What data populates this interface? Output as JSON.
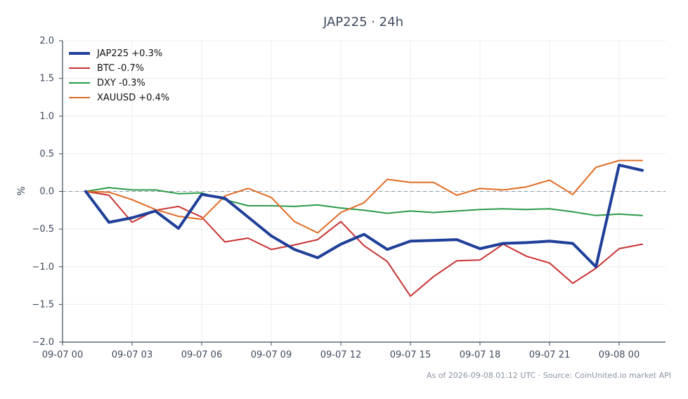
{
  "chart_data": {
    "type": "line",
    "title": "JAP225 · 24h",
    "xlabel": "",
    "ylabel": "%",
    "ylim": [
      -2.0,
      2.0
    ],
    "xlim": [
      "2026-09-07 00:00",
      "2026-09-08 02:00"
    ],
    "yticks": [
      -2.0,
      -1.5,
      -1.0,
      -0.5,
      0.0,
      0.5,
      1.0,
      1.5,
      2.0
    ],
    "ytick_labels": [
      "−2.0",
      "−1.5",
      "−1.0",
      "−0.5",
      "0.0",
      "0.5",
      "1.0",
      "1.5",
      "2.0"
    ],
    "xticks": [
      "2026-09-07 00:00",
      "2026-09-07 03:00",
      "2026-09-07 06:00",
      "2026-09-07 09:00",
      "2026-09-07 12:00",
      "2026-09-07 15:00",
      "2026-09-07 18:00",
      "2026-09-07 21:00",
      "2026-09-08 00:00"
    ],
    "xtick_labels": [
      "09-07 00",
      "09-07 03",
      "09-07 06",
      "09-07 09",
      "09-07 12",
      "09-07 15",
      "09-07 18",
      "09-07 21",
      "09-08 00"
    ],
    "grid": true,
    "zero_line": true,
    "legend_position": "top-left",
    "x": [
      "2026-09-07 01:00",
      "2026-09-07 02:00",
      "2026-09-07 03:00",
      "2026-09-07 04:00",
      "2026-09-07 05:00",
      "2026-09-07 06:00",
      "2026-09-07 07:00",
      "2026-09-07 08:00",
      "2026-09-07 09:00",
      "2026-09-07 10:00",
      "2026-09-07 11:00",
      "2026-09-07 12:00",
      "2026-09-07 13:00",
      "2026-09-07 14:00",
      "2026-09-07 15:00",
      "2026-09-07 16:00",
      "2026-09-07 17:00",
      "2026-09-07 18:00",
      "2026-09-07 19:00",
      "2026-09-07 20:00",
      "2026-09-07 21:00",
      "2026-09-07 22:00",
      "2026-09-07 23:00",
      "2026-09-08 00:00",
      "2026-09-08 01:00"
    ],
    "series": [
      {
        "name": "JAP225 +0.3%",
        "color": "#1f3f99",
        "width": 4,
        "values": [
          0.0,
          -0.41,
          -0.35,
          -0.26,
          -0.49,
          -0.04,
          -0.09,
          -0.34,
          -0.59,
          -0.77,
          -0.88,
          -0.7,
          -0.57,
          -0.77,
          -0.66,
          -0.65,
          -0.64,
          -0.76,
          -0.69,
          -0.68,
          -0.66,
          -0.69,
          -1.0,
          0.35,
          0.28
        ]
      },
      {
        "name": "BTC -0.7%",
        "color": "#c83232",
        "width": 2,
        "values": [
          0.0,
          -0.05,
          -0.41,
          -0.25,
          -0.2,
          -0.34,
          -0.67,
          -0.62,
          -0.77,
          -0.71,
          -0.64,
          -0.4,
          -0.72,
          -0.93,
          -1.39,
          -1.13,
          -0.92,
          -0.91,
          -0.7,
          -0.86,
          -0.95,
          -1.22,
          -1.02,
          -0.76,
          -0.7
        ]
      },
      {
        "name": "DXY -0.3%",
        "color": "#2a9a48",
        "width": 2,
        "values": [
          0.0,
          0.05,
          0.02,
          0.02,
          -0.03,
          -0.02,
          -0.11,
          -0.19,
          -0.19,
          -0.2,
          -0.18,
          -0.22,
          -0.25,
          -0.29,
          -0.26,
          -0.28,
          -0.26,
          -0.24,
          -0.23,
          -0.24,
          -0.23,
          -0.27,
          -0.32,
          -0.3,
          -0.32
        ]
      },
      {
        "name": "XAUUSD +0.4%",
        "color": "#e06a24",
        "width": 2,
        "values": [
          0.0,
          -0.01,
          -0.11,
          -0.24,
          -0.33,
          -0.37,
          -0.06,
          0.04,
          -0.08,
          -0.4,
          -0.55,
          -0.28,
          -0.15,
          0.16,
          0.12,
          0.12,
          -0.05,
          0.04,
          0.02,
          0.06,
          0.15,
          -0.04,
          0.32,
          0.41,
          0.41
        ]
      }
    ],
    "footnote": "As of 2026-09-08 01:12 UTC · Source: CoinUnited.io market API"
  }
}
